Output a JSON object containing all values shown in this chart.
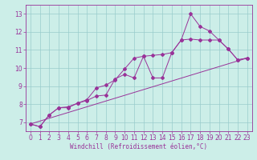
{
  "background_color": "#cceee8",
  "grid_color": "#99cccc",
  "line_color": "#993399",
  "spine_color": "#993399",
  "marker": "D",
  "marker_size": 2.0,
  "linewidth": 0.7,
  "xlabel": "Windchill (Refroidissement éolien,°C)",
  "xlabel_fontsize": 5.5,
  "tick_fontsize": 5.5,
  "xlim": [
    -0.5,
    23.5
  ],
  "ylim": [
    6.5,
    13.5
  ],
  "yticks": [
    7,
    8,
    9,
    10,
    11,
    12,
    13
  ],
  "xticks": [
    0,
    1,
    2,
    3,
    4,
    5,
    6,
    7,
    8,
    9,
    10,
    11,
    12,
    13,
    14,
    15,
    16,
    17,
    18,
    19,
    20,
    21,
    22,
    23
  ],
  "series1": [
    [
      0,
      6.9
    ],
    [
      1,
      6.75
    ],
    [
      2,
      7.4
    ],
    [
      3,
      7.8
    ],
    [
      4,
      7.8
    ],
    [
      5,
      8.05
    ],
    [
      6,
      8.2
    ],
    [
      7,
      8.45
    ],
    [
      8,
      8.5
    ],
    [
      9,
      9.4
    ],
    [
      10,
      9.65
    ],
    [
      11,
      9.45
    ],
    [
      12,
      10.65
    ],
    [
      13,
      9.45
    ],
    [
      14,
      9.45
    ],
    [
      15,
      10.85
    ],
    [
      16,
      11.55
    ],
    [
      17,
      13.0
    ],
    [
      18,
      12.3
    ],
    [
      19,
      12.05
    ],
    [
      20,
      11.55
    ],
    [
      21,
      11.05
    ],
    [
      22,
      10.45
    ],
    [
      23,
      10.55
    ]
  ],
  "series2": [
    [
      0,
      6.9
    ],
    [
      1,
      6.75
    ],
    [
      2,
      7.4
    ],
    [
      3,
      7.8
    ],
    [
      4,
      7.85
    ],
    [
      5,
      8.05
    ],
    [
      6,
      8.25
    ],
    [
      7,
      8.9
    ],
    [
      8,
      9.05
    ],
    [
      9,
      9.35
    ],
    [
      10,
      9.95
    ],
    [
      11,
      10.55
    ],
    [
      12,
      10.65
    ],
    [
      13,
      10.7
    ],
    [
      14,
      10.75
    ],
    [
      15,
      10.85
    ],
    [
      16,
      11.55
    ],
    [
      17,
      11.6
    ],
    [
      18,
      11.55
    ],
    [
      19,
      11.55
    ],
    [
      20,
      11.55
    ],
    [
      21,
      11.05
    ],
    [
      22,
      10.45
    ],
    [
      23,
      10.55
    ]
  ],
  "series3": [
    [
      0,
      6.9
    ],
    [
      23,
      10.55
    ]
  ]
}
